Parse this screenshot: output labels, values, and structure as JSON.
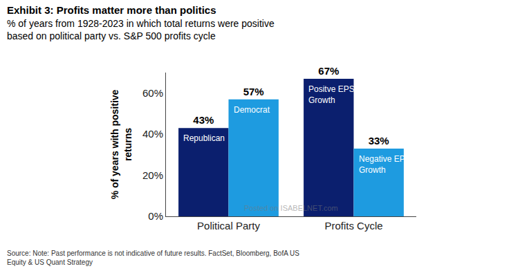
{
  "chart_data": {
    "type": "bar",
    "title": "Exhibit 3: Profits matter more than politics",
    "subtitle": "% of years from 1928-2023 in which total returns were positive based on political party vs. S&P 500 profits cycle",
    "y_label": "% of years with positive returns",
    "categories": [
      "Political Party",
      "Profits Cycle"
    ],
    "series": [
      {
        "color": "#0b1f6e",
        "values": [
          43,
          67
        ],
        "value_labels": [
          "43%",
          "67%"
        ],
        "bar_labels": [
          "Republican",
          "Positve EPS Growth"
        ]
      },
      {
        "color": "#1e9be0",
        "values": [
          57,
          33
        ],
        "value_labels": [
          "57%",
          "33%"
        ],
        "bar_labels": [
          "Democrat",
          "Negative EPS Growth"
        ]
      }
    ],
    "ylim": [
      0,
      70
    ],
    "yticks": [
      {
        "value": 0,
        "label": "0%"
      },
      {
        "value": 20,
        "label": "20%"
      },
      {
        "value": 40,
        "label": "40%"
      },
      {
        "value": 60,
        "label": "60%"
      }
    ],
    "grid": false,
    "data_labels": true,
    "source": "Source: Note: Past performance is not indicative of future results. FactSet, Bloomberg, BofA US Equity & US Quant Strategy",
    "watermark": "Posted on ISABELNET.com"
  }
}
